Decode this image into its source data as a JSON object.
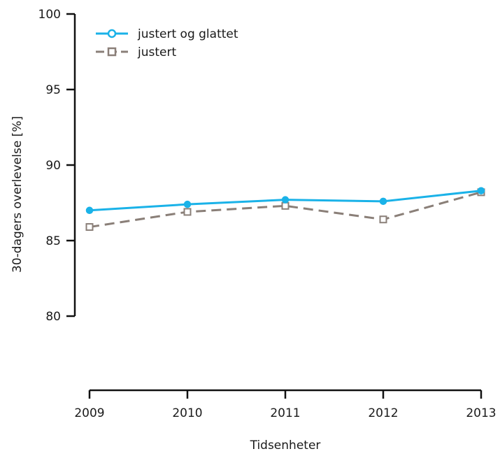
{
  "chart_data": {
    "type": "line",
    "x": [
      2009,
      2010,
      2011,
      2012,
      2013
    ],
    "series": [
      {
        "name": "justert og glattet",
        "values": [
          87.0,
          87.4,
          87.7,
          87.6,
          88.3
        ],
        "color": "#1ab2e8",
        "marker": "circle",
        "dash": "solid"
      },
      {
        "name": "justert",
        "values": [
          85.9,
          86.9,
          87.3,
          86.4,
          88.2
        ],
        "color": "#8a7f78",
        "marker": "square",
        "dash": "dashed"
      }
    ],
    "xlabel": "Tidsenheter",
    "ylabel": "30-dagers overlevelse [%]",
    "yticks": [
      80,
      85,
      90,
      95,
      100
    ],
    "xticks": [
      "2009",
      "2010",
      "2011",
      "2012",
      "2013"
    ],
    "ylim": [
      80,
      100
    ],
    "grid": false,
    "legend_position": "top-left"
  }
}
